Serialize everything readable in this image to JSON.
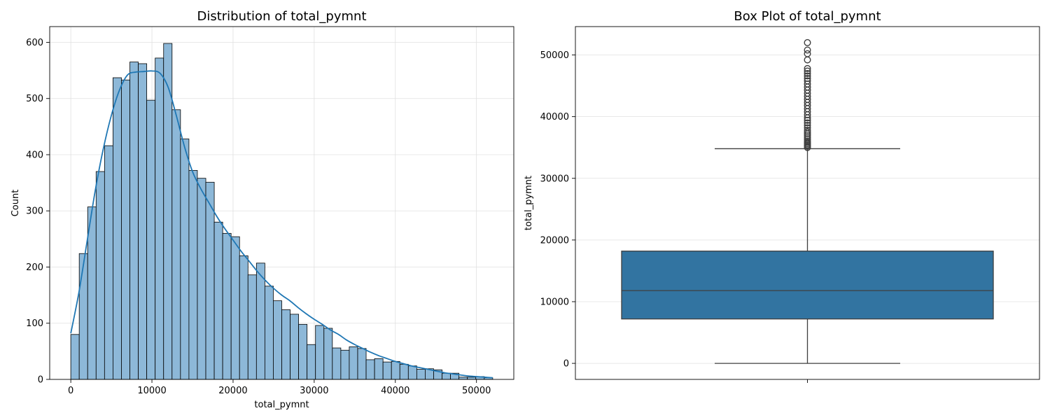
{
  "chart_data": [
    {
      "type": "bar",
      "title": "Distribution of total_pymnt",
      "xlabel": "total_pymnt",
      "ylabel": "Count",
      "xlim": [
        -2600,
        54600
      ],
      "ylim": [
        0,
        628
      ],
      "xticks": [
        0,
        10000,
        20000,
        30000,
        40000,
        50000
      ],
      "yticks": [
        0,
        100,
        200,
        300,
        400,
        500,
        600
      ],
      "grid": true,
      "bar_color": "#8db8d8",
      "bar_edge": "#000000",
      "kde_color": "#1f77b4",
      "bin_edges": [
        0,
        1040,
        2080,
        3120,
        4160,
        5200,
        6240,
        7280,
        8320,
        9360,
        10400,
        11440,
        12480,
        13520,
        14560,
        15600,
        16640,
        17680,
        18720,
        19760,
        20800,
        21840,
        22880,
        23920,
        24960,
        26000,
        27040,
        28080,
        29120,
        30160,
        31200,
        32240,
        33280,
        34320,
        35360,
        36400,
        37440,
        38480,
        39520,
        40560,
        41600,
        42640,
        43680,
        44720,
        45760,
        46800,
        47840,
        48880,
        49920,
        50960,
        52000
      ],
      "counts": [
        80,
        224,
        307,
        370,
        416,
        537,
        533,
        565,
        562,
        497,
        572,
        598,
        480,
        428,
        372,
        358,
        351,
        280,
        260,
        254,
        220,
        186,
        207,
        166,
        140,
        124,
        116,
        98,
        62,
        96,
        91,
        56,
        52,
        58,
        55,
        35,
        37,
        31,
        32,
        27,
        24,
        18,
        19,
        17,
        11,
        11,
        4,
        4,
        5,
        3
      ],
      "kde": {
        "x": [
          0,
          1000,
          2000,
          3000,
          4000,
          5000,
          6000,
          7000,
          8000,
          9000,
          10000,
          11000,
          12000,
          13000,
          14000,
          15000,
          16000,
          17000,
          18000,
          19000,
          20000,
          21000,
          22000,
          23000,
          24000,
          25000,
          26000,
          27000,
          28000,
          29000,
          30000,
          31000,
          32000,
          33000,
          34000,
          35000,
          36000,
          37000,
          38000,
          39000,
          40000,
          41000,
          42000,
          43000,
          44000,
          45000,
          46000,
          47000,
          48000,
          49000,
          50000,
          51000,
          52000
        ],
        "y": [
          82,
          155,
          245,
          335,
          410,
          470,
          515,
          542,
          547,
          548,
          549,
          545,
          520,
          470,
          415,
          370,
          340,
          315,
          290,
          268,
          248,
          228,
          210,
          192,
          176,
          162,
          150,
          140,
          128,
          117,
          107,
          98,
          88,
          80,
          70,
          62,
          55,
          48,
          42,
          37,
          32,
          28,
          24,
          21,
          18,
          15,
          12,
          10,
          8,
          6,
          5,
          4,
          3
        ]
      }
    },
    {
      "type": "box",
      "title": "Box Plot of total_pymnt",
      "xlabel": "",
      "ylabel": "total_pymnt",
      "ylim": [
        -2600,
        54600
      ],
      "yticks": [
        0,
        10000,
        20000,
        30000,
        40000,
        50000
      ],
      "grid": true,
      "box_color": "#3274a1",
      "line_color": "#3f3f3f",
      "whisker_low": 0,
      "q1": 7200,
      "median": 11800,
      "q3": 18200,
      "whisker_high": 34800,
      "outliers": [
        35000,
        35200,
        35400,
        35600,
        35800,
        36000,
        36300,
        36600,
        36900,
        37200,
        37500,
        37800,
        38200,
        38600,
        39000,
        39400,
        39800,
        40300,
        40800,
        41300,
        41800,
        42300,
        42800,
        43300,
        43800,
        44300,
        44800,
        45300,
        45800,
        46200,
        46600,
        47000,
        47400,
        47800,
        49200,
        50200,
        50800,
        52000
      ]
    }
  ]
}
